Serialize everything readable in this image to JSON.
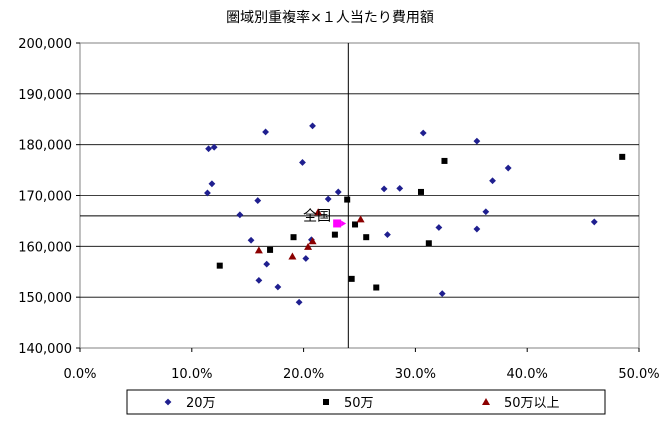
{
  "chart_data": {
    "type": "scatter",
    "title": "圏域別重複率×１人当たり費用額",
    "xlabel": "",
    "ylabel": "",
    "xlim": [
      0,
      50
    ],
    "ylim": [
      140000,
      200000
    ],
    "x_ticks": [
      0,
      10,
      20,
      30,
      40,
      50
    ],
    "x_tick_labels": [
      "0.0%",
      "10.0%",
      "20.0%",
      "30.0%",
      "40.0%",
      "50.0%"
    ],
    "y_ticks": [
      140000,
      150000,
      160000,
      170000,
      180000,
      190000,
      200000
    ],
    "y_tick_labels": [
      "140,000",
      "150,000",
      "160,000",
      "170,000",
      "180,000",
      "190,000",
      "200,000"
    ],
    "grid": true,
    "legend_position": "bottom",
    "reference_lines": {
      "x": 24.0,
      "y": 166000
    },
    "annotation": {
      "text": "全国",
      "x": 23.0,
      "y": 164500,
      "color": "#ff00ff"
    },
    "series": [
      {
        "name": "20万",
        "marker": "diamond",
        "color": "#1f1f8f",
        "points": [
          [
            11.5,
            179200
          ],
          [
            12.0,
            179500
          ],
          [
            11.8,
            172300
          ],
          [
            11.4,
            170500
          ],
          [
            16.6,
            182500
          ],
          [
            20.8,
            183700
          ],
          [
            19.9,
            176500
          ],
          [
            15.9,
            169000
          ],
          [
            14.3,
            166200
          ],
          [
            15.3,
            161200
          ],
          [
            16.7,
            156500
          ],
          [
            16.0,
            153300
          ],
          [
            17.7,
            152000
          ],
          [
            19.6,
            149000
          ],
          [
            20.2,
            157600
          ],
          [
            20.7,
            161300
          ],
          [
            22.2,
            169300
          ],
          [
            23.1,
            170700
          ],
          [
            27.2,
            171300
          ],
          [
            28.6,
            171400
          ],
          [
            30.7,
            182300
          ],
          [
            35.5,
            180700
          ],
          [
            36.9,
            172900
          ],
          [
            38.3,
            175400
          ],
          [
            36.3,
            166800
          ],
          [
            35.5,
            163400
          ],
          [
            32.1,
            163700
          ],
          [
            27.5,
            162300
          ],
          [
            32.4,
            150700
          ],
          [
            46.0,
            164800
          ]
        ]
      },
      {
        "name": "50万",
        "marker": "square",
        "color": "#000000",
        "points": [
          [
            12.5,
            156200
          ],
          [
            17.0,
            159300
          ],
          [
            19.1,
            161800
          ],
          [
            22.8,
            162300
          ],
          [
            23.9,
            169200
          ],
          [
            24.6,
            164300
          ],
          [
            25.6,
            161800
          ],
          [
            24.3,
            153600
          ],
          [
            26.5,
            151900
          ],
          [
            30.5,
            170700
          ],
          [
            32.6,
            176800
          ],
          [
            31.2,
            160600
          ],
          [
            48.5,
            177600
          ]
        ]
      },
      {
        "name": "50万以上",
        "marker": "triangle",
        "color": "#8b0000",
        "points": [
          [
            16.0,
            159200
          ],
          [
            19.0,
            158000
          ],
          [
            20.4,
            159900
          ],
          [
            20.8,
            161000
          ],
          [
            21.3,
            166700
          ],
          [
            25.1,
            165300
          ]
        ]
      }
    ]
  }
}
